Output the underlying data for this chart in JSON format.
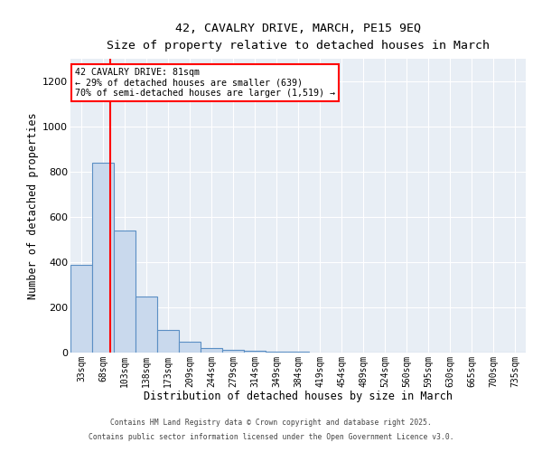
{
  "title1": "42, CAVALRY DRIVE, MARCH, PE15 9EQ",
  "title2": "Size of property relative to detached houses in March",
  "xlabel": "Distribution of detached houses by size in March",
  "ylabel": "Number of detached properties",
  "bin_labels": [
    "33sqm",
    "68sqm",
    "103sqm",
    "138sqm",
    "173sqm",
    "209sqm",
    "244sqm",
    "279sqm",
    "314sqm",
    "349sqm",
    "384sqm",
    "419sqm",
    "454sqm",
    "489sqm",
    "524sqm",
    "560sqm",
    "595sqm",
    "630sqm",
    "665sqm",
    "700sqm",
    "735sqm"
  ],
  "bar_values": [
    390,
    840,
    540,
    250,
    100,
    50,
    22,
    14,
    8,
    3,
    5,
    0,
    0,
    0,
    0,
    0,
    0,
    0,
    0,
    0,
    0
  ],
  "bar_color": "#c9d9ed",
  "bar_edge_color": "#5b8fc4",
  "vline_color": "red",
  "vline_x": 1.35,
  "annotation_text": "42 CAVALRY DRIVE: 81sqm\n← 29% of detached houses are smaller (639)\n70% of semi-detached houses are larger (1,519) →",
  "annotation_box_color": "white",
  "annotation_box_edge": "red",
  "ylim": [
    0,
    1300
  ],
  "yticks": [
    0,
    200,
    400,
    600,
    800,
    1000,
    1200
  ],
  "background_color": "#e8eef5",
  "grid_color": "white",
  "footer1": "Contains HM Land Registry data © Crown copyright and database right 2025.",
  "footer2": "Contains public sector information licensed under the Open Government Licence v3.0."
}
